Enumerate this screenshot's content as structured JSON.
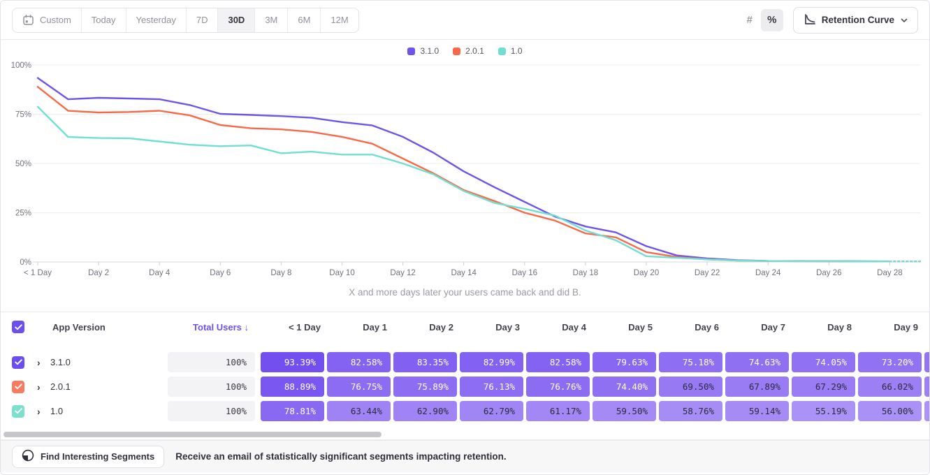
{
  "toolbar": {
    "date_ranges": [
      {
        "label": "Custom",
        "icon": "calendar-icon",
        "selected": false
      },
      {
        "label": "Today",
        "selected": false
      },
      {
        "label": "Yesterday",
        "selected": false
      },
      {
        "label": "7D",
        "selected": false
      },
      {
        "label": "30D",
        "selected": true
      },
      {
        "label": "3M",
        "selected": false
      },
      {
        "label": "6M",
        "selected": false
      },
      {
        "label": "12M",
        "selected": false
      }
    ],
    "value_format_toggle": [
      {
        "label": "#",
        "selected": false
      },
      {
        "label": "%",
        "selected": true
      }
    ],
    "chart_type": {
      "label": "Retention Curve"
    }
  },
  "chart_data": {
    "type": "line",
    "subtitle": "X and more days later your users came back and did B.",
    "ylim": [
      0,
      100
    ],
    "grid": "horizontal",
    "legend_position": "top-center",
    "y_ticks": [
      {
        "label": "0%",
        "value": 0
      },
      {
        "label": "25%",
        "value": 25
      },
      {
        "label": "50%",
        "value": 50
      },
      {
        "label": "75%",
        "value": 75
      },
      {
        "label": "100%",
        "value": 100
      }
    ],
    "x_ticks": [
      {
        "label": "< 1 Day",
        "day": 0
      },
      {
        "label": "Day 2",
        "day": 2
      },
      {
        "label": "Day 4",
        "day": 4
      },
      {
        "label": "Day 6",
        "day": 6
      },
      {
        "label": "Day 8",
        "day": 8
      },
      {
        "label": "Day 10",
        "day": 10
      },
      {
        "label": "Day 12",
        "day": 12
      },
      {
        "label": "Day 14",
        "day": 14
      },
      {
        "label": "Day 16",
        "day": 16
      },
      {
        "label": "Day 18",
        "day": 18
      },
      {
        "label": "Day 20",
        "day": 20
      },
      {
        "label": "Day 22",
        "day": 22
      },
      {
        "label": "Day 24",
        "day": 24
      },
      {
        "label": "Day 26",
        "day": 26
      },
      {
        "label": "Day 28",
        "day": 28
      }
    ],
    "dashed_from_day": 28,
    "series": [
      {
        "name": "3.1.0",
        "color": "#6F54E8",
        "values": [
          93.39,
          82.58,
          83.35,
          82.99,
          82.58,
          79.63,
          75.18,
          74.63,
          74.05,
          73.2,
          71.0,
          69.3,
          63.5,
          55.5,
          46.0,
          38.0,
          30.5,
          23.0,
          18.0,
          15.0,
          8.0,
          3.3,
          1.8,
          0.9,
          0.5,
          0.45,
          0.4,
          0.35,
          0.3,
          0.3
        ]
      },
      {
        "name": "2.0.1",
        "color": "#F8694A",
        "values": [
          88.89,
          76.75,
          75.89,
          76.13,
          76.76,
          74.4,
          69.5,
          67.89,
          67.29,
          66.02,
          63.5,
          60.0,
          52.5,
          45.0,
          36.5,
          31.0,
          25.0,
          21.0,
          14.5,
          12.5,
          5.0,
          2.5,
          1.3,
          0.7,
          0.45,
          0.4,
          0.35,
          0.3,
          0.25,
          0.25
        ]
      },
      {
        "name": "1.0",
        "color": "#70DFD1",
        "values": [
          78.81,
          63.44,
          62.9,
          62.79,
          61.17,
          59.5,
          58.76,
          59.14,
          55.19,
          56.0,
          54.5,
          54.5,
          50.0,
          44.5,
          36.0,
          30.0,
          27.0,
          23.5,
          16.0,
          11.0,
          2.9,
          2.1,
          1.3,
          0.7,
          0.45,
          0.4,
          0.35,
          0.3,
          0.25,
          0.25
        ]
      }
    ]
  },
  "table": {
    "header": {
      "app_version": "App Version",
      "total_users": "Total Users ↓",
      "day_columns": [
        "< 1 Day",
        "Day 1",
        "Day 2",
        "Day 3",
        "Day 4",
        "Day 5",
        "Day 6",
        "Day 7",
        "Day 8",
        "Day 9"
      ]
    },
    "rows": [
      {
        "version": "3.1.0",
        "color": "#6B4EF0",
        "total": "100%",
        "values": [
          93.39,
          82.58,
          83.35,
          82.99,
          82.58,
          79.63,
          75.18,
          74.63,
          74.05,
          73.2
        ]
      },
      {
        "version": "2.0.1",
        "color": "#F97B5F",
        "total": "100%",
        "values": [
          88.89,
          76.75,
          75.89,
          76.13,
          76.76,
          74.4,
          69.5,
          67.89,
          67.29,
          66.02
        ]
      },
      {
        "version": "1.0",
        "color": "#7CE0CF",
        "total": "100%",
        "values": [
          78.81,
          63.44,
          62.9,
          62.79,
          61.17,
          59.5,
          58.76,
          59.14,
          55.19,
          56.0
        ]
      }
    ]
  },
  "footer": {
    "button_label": "Find Interesting Segments",
    "message": "Receive an email of statistically significant segments impacting retention."
  },
  "colors": {
    "accent_purple": "#6C4FF0",
    "cell_dark": "#734EF0",
    "cell_light": "#AD94F6",
    "grid_line": "#ececef",
    "axis_line": "#d9d9de",
    "tick_text": "#71717c"
  }
}
